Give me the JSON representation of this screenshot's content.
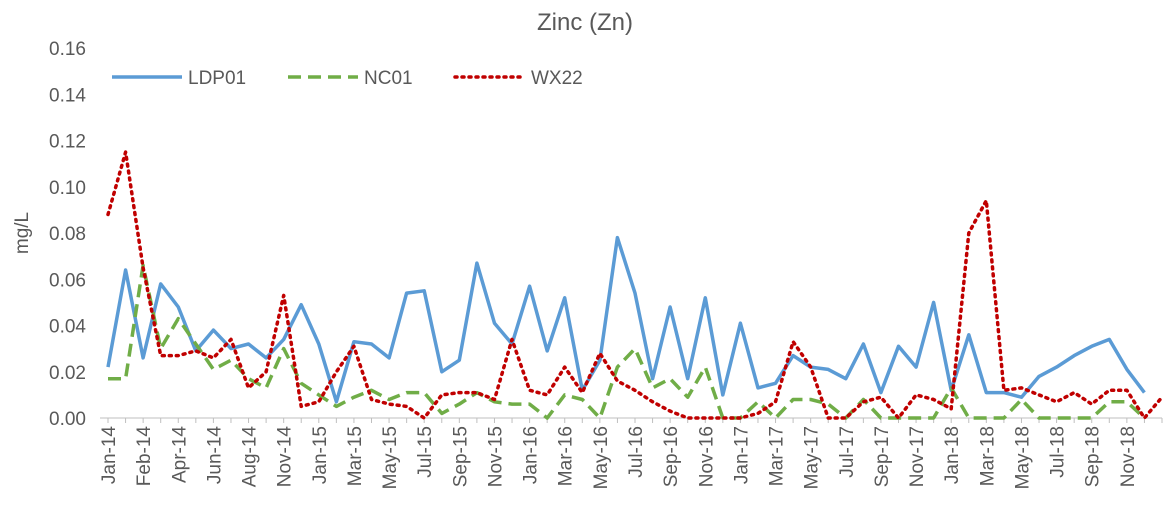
{
  "chart_data": {
    "type": "line",
    "title": "Zinc (Zn)",
    "y_label": "mg/L",
    "categories": [
      "Jan-14",
      null,
      "Feb-14",
      null,
      "Apr-14",
      null,
      "Jun-14",
      null,
      "Aug-14",
      null,
      "Nov-14",
      null,
      "Jan-15",
      null,
      "Mar-15",
      null,
      "May-15",
      null,
      "Jul-15",
      null,
      "Sep-15",
      null,
      "Nov-15",
      null,
      "Jan-16",
      null,
      "Mar-16",
      null,
      "May-16",
      null,
      "Jul-16",
      null,
      "Sep-16",
      null,
      "Nov-16",
      null,
      "Jan-17",
      null,
      "Mar-17",
      null,
      "May-17",
      null,
      "Jul-17",
      null,
      "Sep-17",
      null,
      "Nov-17",
      null,
      "Jan-18",
      null,
      "Mar-18",
      null,
      "May-18",
      null,
      "Jul-18",
      null,
      "Sep-18",
      null,
      "Nov-18",
      null,
      null
    ],
    "series": [
      {
        "name": "LDP01",
        "color": "#5b9bd5",
        "dash": "solid",
        "values": [
          0.022,
          0.064,
          0.026,
          0.058,
          0.048,
          0.029,
          0.038,
          0.03,
          0.032,
          0.026,
          0.034,
          0.049,
          0.032,
          0.007,
          0.033,
          0.032,
          0.026,
          0.054,
          0.055,
          0.02,
          0.025,
          0.067,
          0.041,
          0.032,
          0.057,
          0.029,
          0.052,
          0.012,
          0.025,
          0.078,
          0.054,
          0.017,
          0.048,
          0.017,
          0.052,
          0.01,
          0.041,
          0.013,
          0.015,
          0.027,
          0.022,
          0.021,
          0.017,
          0.032,
          0.011,
          0.031,
          0.022,
          0.05,
          0.012,
          0.036,
          0.011,
          0.011,
          0.009,
          0.018,
          0.022,
          0.027,
          0.031,
          0.034,
          0.021,
          0.011,
          null
        ]
      },
      {
        "name": "NC01",
        "color": "#70ad47",
        "dash": "dashed",
        "values": [
          0.017,
          0.017,
          0.066,
          0.03,
          0.043,
          0.032,
          0.021,
          0.025,
          0.017,
          0.013,
          0.03,
          0.015,
          0.01,
          0.005,
          0.009,
          0.012,
          0.008,
          0.011,
          0.011,
          0.002,
          0.006,
          0.011,
          0.007,
          0.006,
          0.006,
          0,
          0.01,
          0.008,
          0,
          0.022,
          0.03,
          0.013,
          0.017,
          0.009,
          0.022,
          0,
          0,
          0.007,
          0,
          0.008,
          0.008,
          0.006,
          0,
          0.008,
          0,
          0,
          0,
          0,
          0.013,
          0,
          0,
          0,
          0.008,
          0,
          0,
          0,
          0,
          0.007,
          0.007,
          0,
          null
        ]
      },
      {
        "name": "WX22",
        "color": "#c00000",
        "dash": "dotted",
        "values": [
          0.088,
          0.115,
          0.065,
          0.027,
          0.027,
          0.029,
          0.026,
          0.034,
          0.013,
          0.02,
          0.053,
          0.005,
          0.007,
          0.02,
          0.031,
          0.008,
          0.006,
          0.005,
          0,
          0.01,
          0.011,
          0.011,
          0.008,
          0.034,
          0.012,
          0.01,
          0.022,
          0.011,
          0.028,
          0.016,
          0.012,
          0.007,
          0.003,
          0,
          0,
          0,
          0,
          0.002,
          0.007,
          0.033,
          0.022,
          0,
          0,
          0.007,
          0.009,
          0,
          0.01,
          0.008,
          0.004,
          0.08,
          0.094,
          0.012,
          0.013,
          0.01,
          0.007,
          0.011,
          0.006,
          0.012,
          0.012,
          0,
          0.009
        ]
      }
    ],
    "ylim": [
      0,
      0.16
    ],
    "yticks": [
      {
        "value": 0,
        "label": "0.00"
      },
      {
        "value": 0.02,
        "label": "0.02"
      },
      {
        "value": 0.04,
        "label": "0.04"
      },
      {
        "value": 0.06,
        "label": "0.06"
      },
      {
        "value": 0.08,
        "label": "0.08"
      },
      {
        "value": 0.1,
        "label": "0.10"
      },
      {
        "value": 0.12,
        "label": "0.12"
      },
      {
        "value": 0.14,
        "label": "0.14"
      },
      {
        "value": 0.16,
        "label": "0.16"
      }
    ],
    "legend": "top-left",
    "grid": false
  }
}
